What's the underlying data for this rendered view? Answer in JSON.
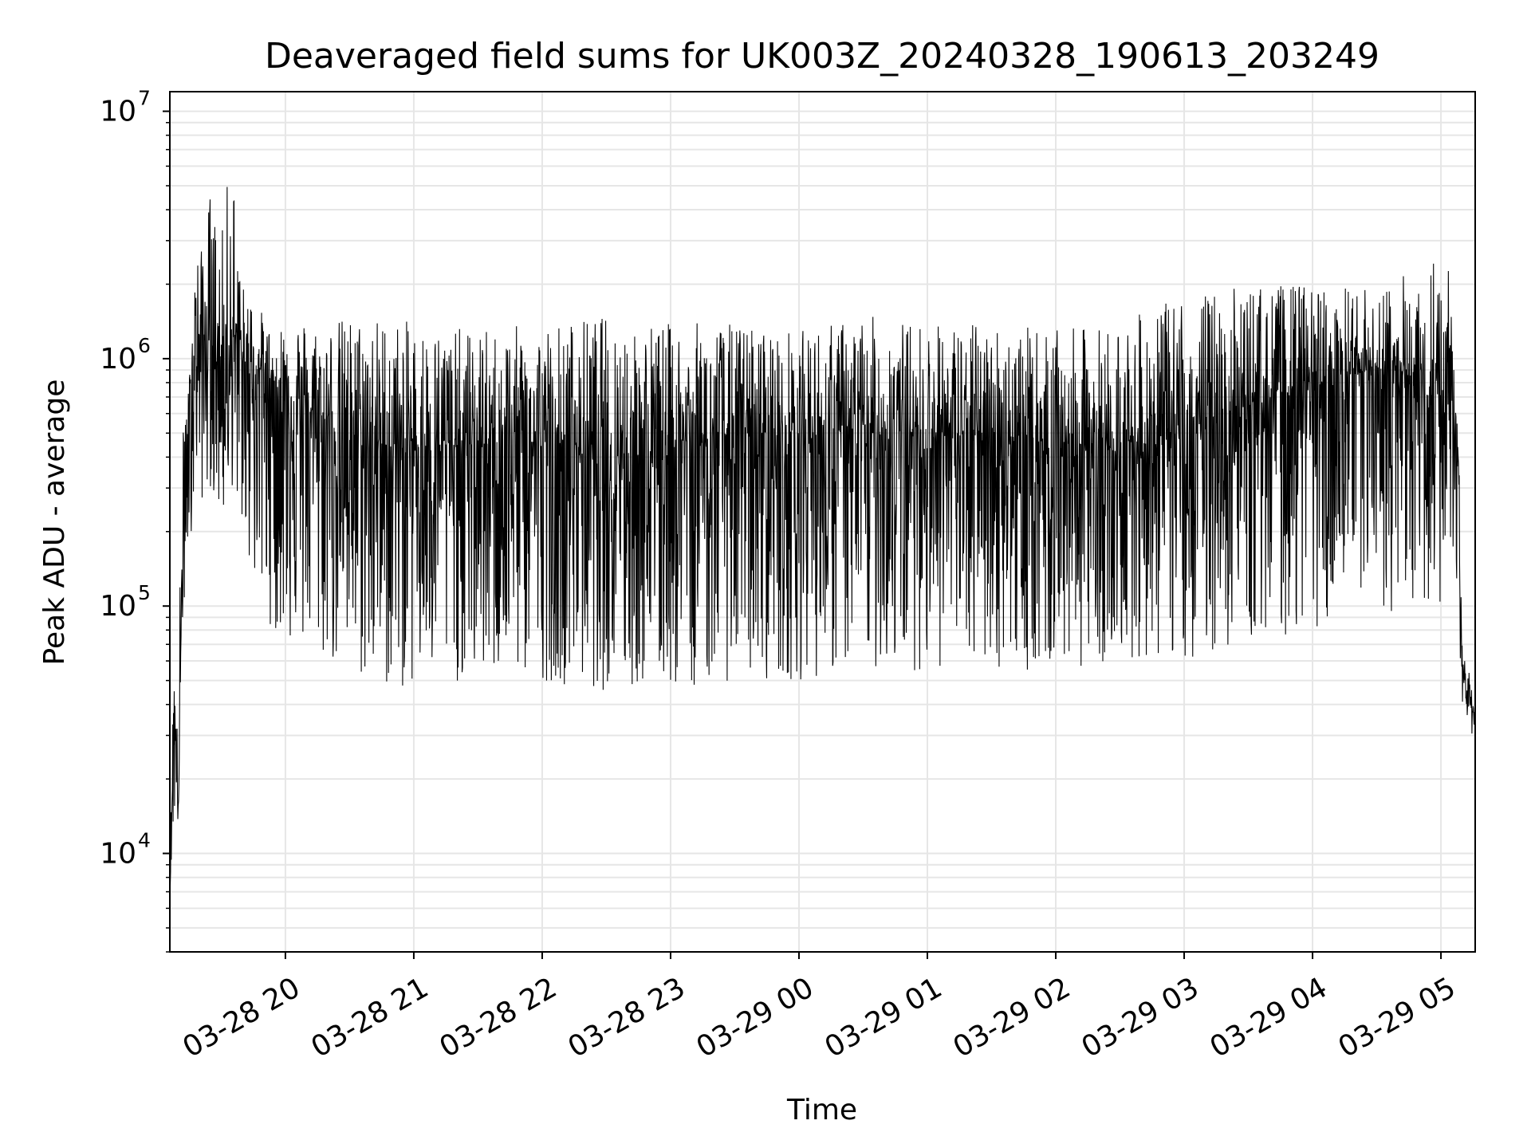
{
  "chart_data": {
    "type": "line",
    "title": "Deaveraged field sums for UK003Z_20240328_190613_203249",
    "xlabel": "Time",
    "ylabel": "Peak ADU - average",
    "y_scale": "log",
    "ylim": [
      4000,
      12000000
    ],
    "xlim": [
      "2024-03-28 19:06",
      "2024-03-29 05:16"
    ],
    "grid": "on",
    "line_color": "#000000",
    "grid_color": "#e6e6e6",
    "x_ticks": [
      {
        "t": "2024-03-28 20:00",
        "label": "03-28 20"
      },
      {
        "t": "2024-03-28 21:00",
        "label": "03-28 21"
      },
      {
        "t": "2024-03-28 22:00",
        "label": "03-28 22"
      },
      {
        "t": "2024-03-28 23:00",
        "label": "03-28 23"
      },
      {
        "t": "2024-03-29 00:00",
        "label": "03-29 00"
      },
      {
        "t": "2024-03-29 01:00",
        "label": "03-29 01"
      },
      {
        "t": "2024-03-29 02:00",
        "label": "03-29 02"
      },
      {
        "t": "2024-03-29 03:00",
        "label": "03-29 03"
      },
      {
        "t": "2024-03-29 04:00",
        "label": "03-29 04"
      },
      {
        "t": "2024-03-29 05:00",
        "label": "03-29 05"
      }
    ],
    "y_ticks": [
      {
        "value": 10000,
        "base": "10",
        "exp": "4"
      },
      {
        "value": 100000,
        "base": "10",
        "exp": "5"
      },
      {
        "value": 1000000,
        "base": "10",
        "exp": "6"
      },
      {
        "value": 10000000,
        "base": "10",
        "exp": "7"
      }
    ],
    "series": [
      {
        "x": [
          "2024-03-28 19:06",
          "2024-03-28 19:08",
          "2024-03-28 19:10",
          "2024-03-28 19:12",
          "2024-03-28 19:14",
          "2024-03-28 19:16",
          "2024-03-28 19:18",
          "2024-03-28 19:20",
          "2024-03-28 19:25",
          "2024-03-28 19:30",
          "2024-03-28 19:35",
          "2024-03-28 19:40",
          "2024-03-28 19:45",
          "2024-03-28 19:50",
          "2024-03-28 19:55",
          "2024-03-28 20:00",
          "2024-03-28 20:15",
          "2024-03-28 20:30",
          "2024-03-28 20:45",
          "2024-03-28 21:00",
          "2024-03-28 21:30",
          "2024-03-28 22:00",
          "2024-03-28 22:30",
          "2024-03-28 23:00",
          "2024-03-28 23:30",
          "2024-03-29 00:00",
          "2024-03-29 00:30",
          "2024-03-29 01:00",
          "2024-03-29 01:30",
          "2024-03-29 02:00",
          "2024-03-29 02:30",
          "2024-03-29 03:00",
          "2024-03-29 03:30",
          "2024-03-29 04:00",
          "2024-03-29 04:30",
          "2024-03-29 05:00",
          "2024-03-29 05:05",
          "2024-03-29 05:08",
          "2024-03-29 05:10",
          "2024-03-29 05:12",
          "2024-03-29 05:14",
          "2024-03-29 05:16"
        ],
        "high": [
          9000,
          80000,
          25000,
          2200000,
          600000,
          1200000,
          3000000,
          2500000,
          5000000,
          3000000,
          8000000,
          2000000,
          1800000,
          1500000,
          1200000,
          1600000,
          1400000,
          1500000,
          1500000,
          1400000,
          1300000,
          1400000,
          1500000,
          1400000,
          1400000,
          1300000,
          1500000,
          1400000,
          1400000,
          1300000,
          1400000,
          1800000,
          2000000,
          2000000,
          1900000,
          2800000,
          2200000,
          600000,
          80000,
          60000,
          50000,
          40000
        ],
        "typical": [
          7000,
          40000,
          15000,
          200000,
          400000,
          900000,
          1300000,
          1200000,
          1200000,
          1100000,
          1300000,
          1000000,
          950000,
          900000,
          800000,
          700000,
          600000,
          500000,
          450000,
          450000,
          450000,
          450000,
          450000,
          450000,
          500000,
          500000,
          500000,
          500000,
          500000,
          450000,
          450000,
          500000,
          650000,
          800000,
          900000,
          700000,
          1200000,
          400000,
          60000,
          45000,
          40000,
          35000
        ],
        "low": [
          7000,
          13000,
          13000,
          80000,
          150000,
          200000,
          300000,
          250000,
          300000,
          200000,
          300000,
          200000,
          120000,
          90000,
          80000,
          70000,
          60000,
          50000,
          45000,
          45000,
          50000,
          50000,
          45000,
          45000,
          50000,
          50000,
          55000,
          55000,
          55000,
          55000,
          60000,
          60000,
          70000,
          80000,
          90000,
          100000,
          200000,
          70000,
          35000,
          30000,
          30000,
          30000
        ]
      }
    ]
  }
}
